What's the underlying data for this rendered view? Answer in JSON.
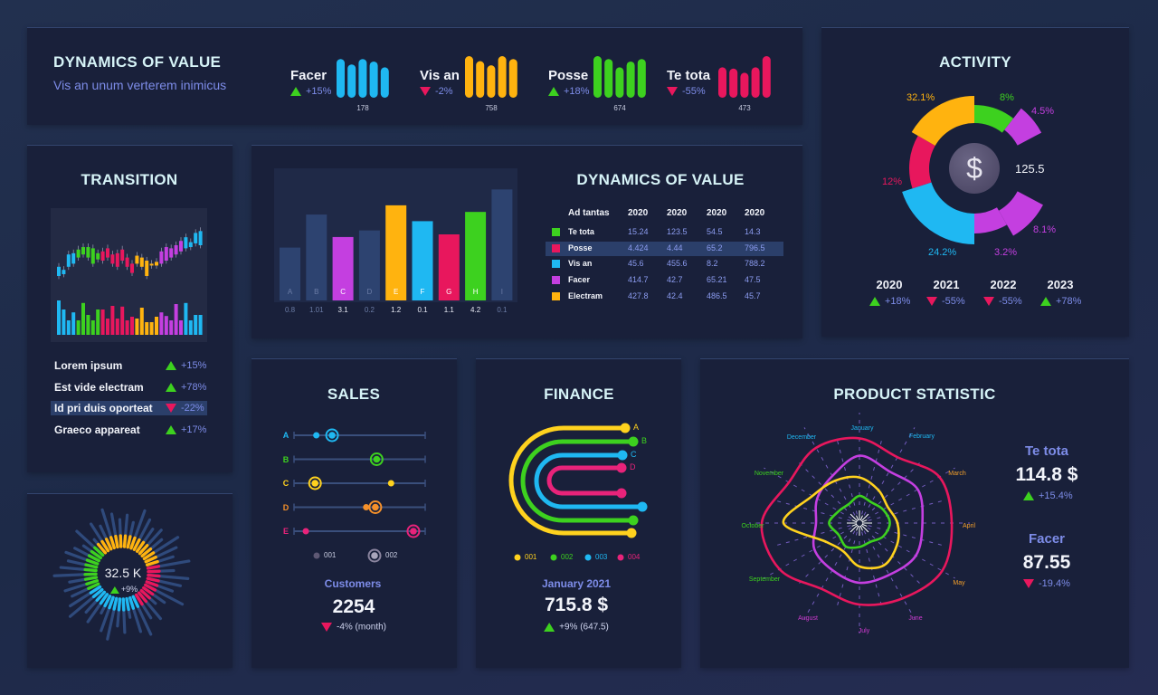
{
  "colors": {
    "blue": "#1fb8f2",
    "orange": "#ffb30f",
    "green": "#3dd11f",
    "red": "#e8175d",
    "purple": "#c43fe0",
    "yellow": "#ffd21e",
    "darkorange": "#f5902a",
    "pink": "#e8237a",
    "muted": "#2d4370",
    "accent": "#7d8ce8"
  },
  "header": {
    "title": "DYNAMICS OF VALUE",
    "subtitle": "Vis an unum verterem inimicus",
    "groups": [
      {
        "label": "Facer",
        "change": "+15%",
        "trend": "up",
        "value": "178",
        "color": "blue",
        "bars": [
          0.93,
          0.8,
          0.93,
          0.87,
          0.73
        ]
      },
      {
        "label": "Vis an",
        "change": "-2%",
        "trend": "down",
        "value": "758",
        "color": "orange",
        "bars": [
          1,
          0.88,
          0.78,
          1,
          0.93
        ]
      },
      {
        "label": "Posse",
        "change": "+18%",
        "trend": "up",
        "value": "674",
        "color": "green",
        "bars": [
          1,
          0.93,
          0.73,
          0.87,
          0.93
        ]
      },
      {
        "label": "Te tota",
        "change": "-55%",
        "trend": "down",
        "value": "473",
        "color": "red",
        "bars": [
          0.73,
          0.7,
          0.6,
          0.73,
          1
        ]
      }
    ]
  },
  "activity": {
    "title": "ACTIVITY",
    "center_value": "125.5",
    "center_icon": "dollar-icon",
    "segments": [
      {
        "label": "8%",
        "color": "green"
      },
      {
        "label": "4.5%",
        "color": "purple"
      },
      {
        "label": "8.1%",
        "color": "purple"
      },
      {
        "label": "3.2%",
        "color": "purple"
      },
      {
        "label": "24.2%",
        "color": "blue"
      },
      {
        "label": "12%",
        "color": "red"
      },
      {
        "label": "32.1%",
        "color": "orange"
      }
    ],
    "years": [
      {
        "year": "2020",
        "change": "+18%",
        "trend": "up"
      },
      {
        "year": "2021",
        "change": "-55%",
        "trend": "down"
      },
      {
        "year": "2022",
        "change": "-55%",
        "trend": "down"
      },
      {
        "year": "2023",
        "change": "+78%",
        "trend": "up"
      }
    ]
  },
  "transition": {
    "title": "TRANSITION",
    "candles": [
      [
        25,
        40,
        "blue"
      ],
      [
        28,
        35,
        "blue"
      ],
      [
        40,
        60,
        "blue"
      ],
      [
        45,
        62,
        "blue"
      ],
      [
        55,
        68,
        "green"
      ],
      [
        60,
        72,
        "green"
      ],
      [
        55,
        72,
        "green"
      ],
      [
        45,
        70,
        "green"
      ],
      [
        52,
        62,
        "green"
      ],
      [
        50,
        65,
        "red"
      ],
      [
        55,
        70,
        "red"
      ],
      [
        45,
        60,
        "red"
      ],
      [
        40,
        62,
        "red"
      ],
      [
        50,
        68,
        "red"
      ],
      [
        40,
        55,
        "red"
      ],
      [
        30,
        45,
        "red"
      ],
      [
        45,
        58,
        "orange"
      ],
      [
        40,
        55,
        "orange"
      ],
      [
        25,
        50,
        "orange"
      ],
      [
        42,
        45,
        "orange"
      ],
      [
        42,
        48,
        "orange"
      ],
      [
        45,
        65,
        "purple"
      ],
      [
        50,
        72,
        "purple"
      ],
      [
        55,
        70,
        "purple"
      ],
      [
        60,
        75,
        "purple"
      ],
      [
        65,
        82,
        "purple"
      ],
      [
        70,
        88,
        "blue"
      ],
      [
        72,
        80,
        "blue"
      ],
      [
        78,
        95,
        "blue"
      ],
      [
        75,
        98,
        "blue"
      ]
    ],
    "volumes": [
      0.95,
      0.7,
      0.4,
      0.62,
      0.4,
      0.88,
      0.55,
      0.4,
      0.7,
      0.7,
      0.45,
      0.8,
      0.45,
      0.78,
      0.4,
      0.5,
      0.45,
      0.75,
      0.35,
      0.35,
      0.5,
      0.62,
      0.52,
      0.4,
      0.85,
      0.4,
      0.88,
      0.4,
      0.55,
      0.55
    ],
    "items": [
      {
        "label": "Lorem ipsum",
        "change": "+15%",
        "trend": "up"
      },
      {
        "label": "Est vide electram",
        "change": "+78%",
        "trend": "up"
      },
      {
        "label": "Id pri duis oporteat",
        "change": "-22%",
        "trend": "down",
        "selected": true
      },
      {
        "label": "Graeco appareat",
        "change": "+17%",
        "trend": "up"
      }
    ]
  },
  "dynamics": {
    "title": "DYNAMICS OF VALUE",
    "chart_data": {
      "type": "bar",
      "categories": [
        "A",
        "B",
        "C",
        "D",
        "E",
        "F",
        "G",
        "H",
        "I"
      ],
      "values": [
        "0.8",
        "1.01",
        "3.1",
        "0.2",
        "1.2",
        "0.1",
        "1.1",
        "4.2",
        "0.1"
      ],
      "levels": [
        0.4,
        0.65,
        0.48,
        0.53,
        0.72,
        0.6,
        0.5,
        0.67,
        0.84
      ],
      "bar_colors": [
        "muted",
        "muted",
        "purple",
        "muted",
        "orange",
        "blue",
        "red",
        "green",
        "muted"
      ]
    },
    "table": {
      "headers": [
        "Ad tantas",
        "2020",
        "2020",
        "2020",
        "2020"
      ],
      "rows": [
        {
          "color": "green",
          "cells": [
            "Te tota",
            "15.24",
            "123.5",
            "54.5",
            "14.3"
          ]
        },
        {
          "color": "red",
          "cells": [
            "Posse",
            "4.424",
            "4.44",
            "65.2",
            "796.5"
          ],
          "selected": true
        },
        {
          "color": "blue",
          "cells": [
            "Vis an",
            "45.6",
            "455.6",
            "8.2",
            "788.2"
          ]
        },
        {
          "color": "purple",
          "cells": [
            "Facer",
            "414.7",
            "42.7",
            "65.21",
            "47.5"
          ]
        },
        {
          "color": "orange",
          "cells": [
            "Electram",
            "427.8",
            "42.4",
            "486.5",
            "45.7"
          ]
        }
      ]
    }
  },
  "radial": {
    "value": "32.5 K",
    "change": "+9%",
    "trend": "up",
    "shares": [
      {
        "color": "orange",
        "share": 0.32
      },
      {
        "color": "red",
        "share": 0.22
      },
      {
        "color": "blue",
        "share": 0.25
      },
      {
        "color": "green",
        "share": 0.21
      }
    ]
  },
  "sales": {
    "title": "SALES",
    "rows": [
      {
        "label": "A",
        "color": "blue",
        "s001": 17,
        "s002": 29
      },
      {
        "label": "B",
        "color": "green",
        "s002": 63
      },
      {
        "label": "C",
        "color": "yellow",
        "s001": 74,
        "s002": 16
      },
      {
        "label": "D",
        "color": "darkorange",
        "s001": 55,
        "s002": 62
      },
      {
        "label": "E",
        "color": "pink",
        "s001": 9,
        "s002": 91
      }
    ],
    "legend": [
      "001",
      "002"
    ],
    "caption": "Customers",
    "value": "2254",
    "change": "-4% (month)",
    "trend": "down"
  },
  "finance": {
    "title": "FINANCE",
    "arcs": [
      {
        "label": "A",
        "color": "yellow"
      },
      {
        "label": "B",
        "color": "green"
      },
      {
        "label": "C",
        "color": "blue"
      },
      {
        "label": "D",
        "color": "pink"
      }
    ],
    "legend": [
      {
        "label": "001",
        "color": "yellow"
      },
      {
        "label": "002",
        "color": "green"
      },
      {
        "label": "003",
        "color": "blue"
      },
      {
        "label": "004",
        "color": "pink"
      }
    ],
    "caption": "January 2021",
    "value": "715.8 $",
    "change": "+9% (647.5)",
    "trend": "up"
  },
  "product": {
    "title": "PRODUCT STATISTIC",
    "chart_data": {
      "type": "radar",
      "months": [
        "January",
        "February",
        "March",
        "April",
        "May",
        "June",
        "July",
        "August",
        "September",
        "October",
        "November",
        "December"
      ],
      "month_colors": [
        "blue",
        "blue",
        "orange",
        "orange",
        "orange",
        "purple",
        "purple",
        "purple",
        "green",
        "green",
        "green",
        "blue"
      ],
      "series": [
        {
          "color": "red",
          "values": [
            78,
            70,
            85,
            85,
            88,
            80,
            75,
            70,
            85,
            90,
            75,
            80
          ]
        },
        {
          "color": "purple",
          "values": [
            62,
            55,
            62,
            58,
            60,
            55,
            55,
            50,
            48,
            40,
            45,
            50
          ]
        },
        {
          "color": "yellow",
          "values": [
            42,
            35,
            30,
            35,
            40,
            45,
            40,
            30,
            35,
            70,
            50,
            45
          ]
        },
        {
          "color": "green",
          "values": [
            25,
            22,
            25,
            28,
            25,
            20,
            22,
            25,
            22,
            28,
            22,
            20
          ]
        }
      ]
    },
    "stats": [
      {
        "label": "Te tota",
        "value": "114.8 $",
        "change": "+15.4%",
        "trend": "up"
      },
      {
        "label": "Facer",
        "value": "87.55",
        "change": "-19.4%",
        "trend": "down"
      }
    ]
  }
}
